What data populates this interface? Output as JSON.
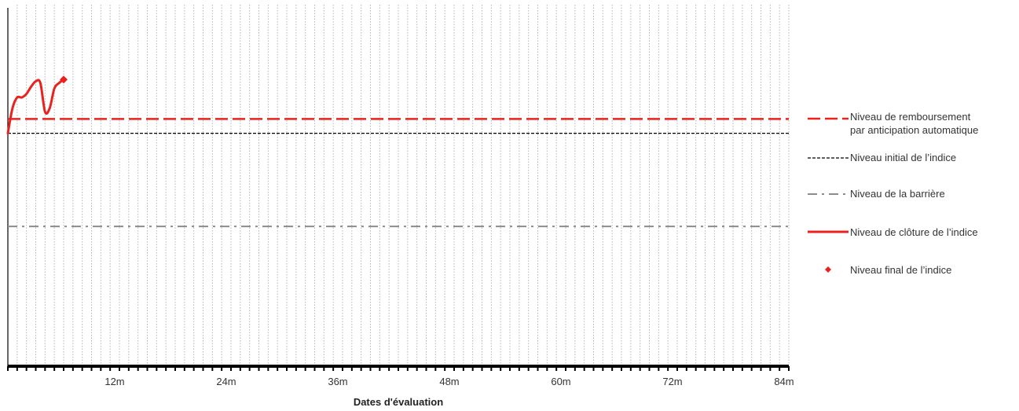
{
  "chart_data": {
    "type": "line",
    "title": "",
    "xlabel": "Dates d'évaluation",
    "ylabel": "",
    "x_range_months": [
      0,
      84
    ],
    "x_ticks": [
      "12m",
      "24m",
      "36m",
      "48m",
      "60m",
      "72m",
      "84m"
    ],
    "x_tick_values": [
      12,
      24,
      36,
      48,
      60,
      72,
      84
    ],
    "grid": "vertical dotted, monthly",
    "y_range": [
      0,
      100
    ],
    "legend_position": "right",
    "series": [
      {
        "name": "Niveau de remboursement par anticipation automatique",
        "style": "long-dash",
        "color": "#e8231f",
        "x": [
          0,
          84
        ],
        "y": [
          69,
          69
        ]
      },
      {
        "name": "Niveau initial de l’indice",
        "style": "short-dash",
        "color": "#000000",
        "x": [
          0,
          84
        ],
        "y": [
          65,
          65
        ]
      },
      {
        "name": "Niveau de la barrière",
        "style": "dash-dot",
        "color": "#8c8c8c",
        "x": [
          0,
          84
        ],
        "y": [
          39,
          39
        ]
      },
      {
        "name": "Niveau de clôture de l’indice",
        "style": "solid",
        "color": "#e8231f",
        "x": [
          0,
          0.5,
          1,
          1.5,
          2,
          2.5,
          3,
          3.5,
          4,
          4.5,
          5,
          5.5,
          6
        ],
        "y": [
          65,
          72,
          75,
          75,
          76,
          78,
          79.5,
          79,
          71,
          72,
          77.5,
          79,
          80
        ]
      },
      {
        "name": "Niveau final de l’indice",
        "style": "diamond-marker",
        "color": "#e8231f",
        "x": [
          6
        ],
        "y": [
          80
        ]
      }
    ]
  },
  "legend": {
    "items": [
      {
        "label_line1": "Niveau de remboursement",
        "label_line2": "par anticipation automatique"
      },
      {
        "label_line1": "Niveau initial de l’indice",
        "label_line2": ""
      },
      {
        "label_line1": "Niveau de la barrière",
        "label_line2": ""
      },
      {
        "label_line1": "Niveau de clôture de l’indice",
        "label_line2": ""
      },
      {
        "label_line1": "Niveau final de l’indice",
        "label_line2": ""
      }
    ]
  }
}
